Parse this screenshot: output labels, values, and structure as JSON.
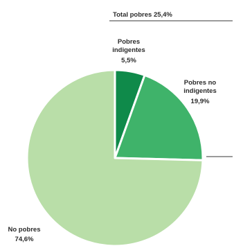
{
  "chart_data": {
    "type": "pie",
    "slices": [
      {
        "label_line1": "Pobres",
        "label_line2": "indigentes",
        "value_label": "5,5%",
        "value": 5.5,
        "color": "#0f8a4a"
      },
      {
        "label_line1": "Pobres no",
        "label_line2": "indigentes",
        "value_label": "19,9%",
        "value": 19.9,
        "color": "#3fb36a"
      },
      {
        "label_line1": "No pobres",
        "label_line2": "",
        "value_label": "74,6%",
        "value": 74.6,
        "color": "#b9dea8"
      }
    ],
    "bracket_label": "Total pobres 25,4%",
    "bracket_color": "#7a7a7a"
  }
}
